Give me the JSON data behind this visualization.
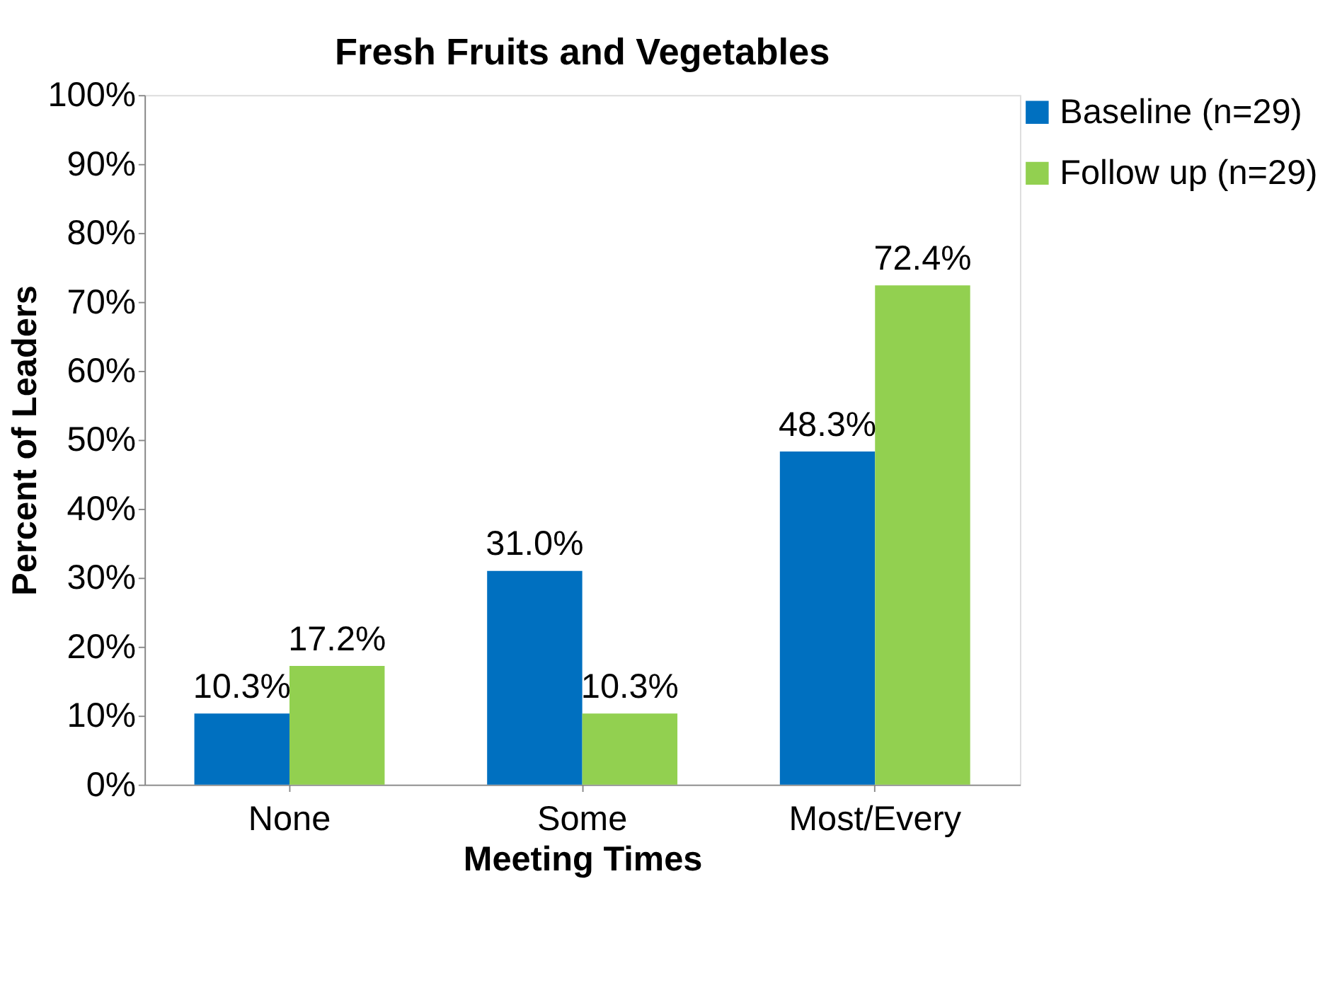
{
  "chart_data": {
    "type": "bar",
    "title": "Fresh Fruits and Vegetables",
    "xlabel": "Meeting Times",
    "ylabel": "Percent of Leaders",
    "categories": [
      "None",
      "Some",
      "Most/Every"
    ],
    "series": [
      {
        "name": "Baseline (n=29)",
        "color": "#0070c0",
        "values": [
          10.3,
          31.0,
          48.3
        ],
        "value_labels": [
          "10.3%",
          "31.0%",
          "48.3%"
        ]
      },
      {
        "name": "Follow up (n=29)",
        "color": "#92d050",
        "values": [
          17.2,
          10.3,
          72.4
        ],
        "value_labels": [
          "17.2%",
          "10.3%",
          "72.4%"
        ]
      }
    ],
    "ylim": [
      0,
      100
    ],
    "yticks": [
      {
        "value": 0,
        "label": "0%"
      },
      {
        "value": 10,
        "label": "10%"
      },
      {
        "value": 20,
        "label": "20%"
      },
      {
        "value": 30,
        "label": "30%"
      },
      {
        "value": 40,
        "label": "40%"
      },
      {
        "value": 50,
        "label": "50%"
      },
      {
        "value": 60,
        "label": "60%"
      },
      {
        "value": 70,
        "label": "70%"
      },
      {
        "value": 80,
        "label": "80%"
      },
      {
        "value": 90,
        "label": "90%"
      },
      {
        "value": 100,
        "label": "100%"
      }
    ],
    "grid": false,
    "legend": "top right"
  }
}
